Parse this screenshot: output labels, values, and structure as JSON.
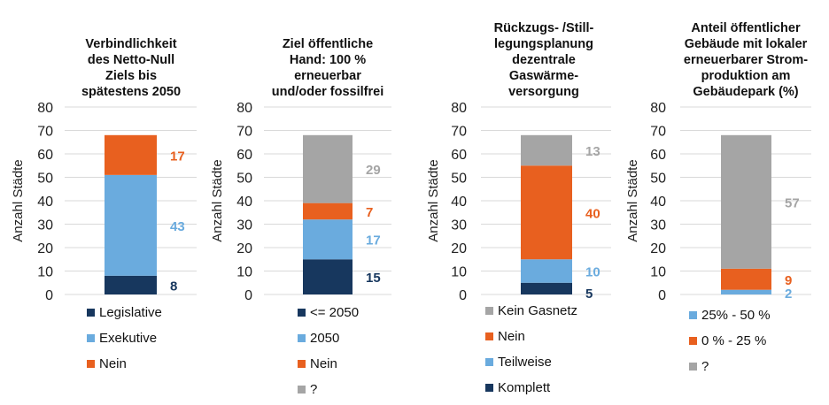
{
  "colors": {
    "dark_blue": "#17375e",
    "light_blue": "#6aabde",
    "orange": "#e8601f",
    "gray": "#a5a5a5",
    "grid": "#d9d9d9"
  },
  "chart_data": [
    {
      "type": "bar",
      "stacked": true,
      "title_lines": [
        "Verbindlichkeit",
        "des Netto-Null",
        "Ziels bis",
        "spätestens 2050"
      ],
      "ylabel": "Anzahl Städte",
      "ylim": [
        0,
        80
      ],
      "yticks": [
        0,
        10,
        20,
        30,
        40,
        50,
        60,
        70,
        80
      ],
      "grid": true,
      "series": [
        {
          "name": "Legislative",
          "value": 8,
          "color": "#17375e"
        },
        {
          "name": "Exekutive",
          "value": 43,
          "color": "#6aabde"
        },
        {
          "name": "Nein",
          "value": 17,
          "color": "#e8601f"
        }
      ],
      "legend_order": [
        "Legislative",
        "Exekutive",
        "Nein"
      ],
      "legend": "bottom"
    },
    {
      "type": "bar",
      "stacked": true,
      "title_lines": [
        "Ziel öffentliche",
        "Hand: 100 %",
        "erneuerbar",
        "und/oder fossilfrei"
      ],
      "ylabel": "Anzahl Städte",
      "ylim": [
        0,
        80
      ],
      "yticks": [
        0,
        10,
        20,
        30,
        40,
        50,
        60,
        70,
        80
      ],
      "grid": true,
      "series": [
        {
          "name": "<= 2050",
          "value": 15,
          "color": "#17375e"
        },
        {
          "name": "2050",
          "value": 17,
          "color": "#6aabde"
        },
        {
          "name": "Nein",
          "value": 7,
          "color": "#e8601f"
        },
        {
          "name": "?",
          "value": 29,
          "color": "#a5a5a5"
        }
      ],
      "legend_order": [
        "<= 2050",
        "2050",
        "Nein",
        "?"
      ],
      "legend": "bottom"
    },
    {
      "type": "bar",
      "stacked": true,
      "title_lines": [
        "Rückzugs- /Still-",
        "legungsplanung",
        "dezentrale",
        "Gaswärme-",
        "versorgung"
      ],
      "ylabel": "Anzahl Städte",
      "ylim": [
        0,
        80
      ],
      "yticks": [
        0,
        10,
        20,
        30,
        40,
        50,
        60,
        70,
        80
      ],
      "grid": true,
      "series": [
        {
          "name": "Komplett",
          "value": 5,
          "color": "#17375e"
        },
        {
          "name": "Teilweise",
          "value": 10,
          "color": "#6aabde"
        },
        {
          "name": "Nein",
          "value": 40,
          "color": "#e8601f"
        },
        {
          "name": "Kein Gasnetz",
          "value": 13,
          "color": "#a5a5a5"
        }
      ],
      "legend_order": [
        "Kein Gasnetz",
        "Nein",
        "Teilweise",
        "Komplett"
      ],
      "legend": "bottom"
    },
    {
      "type": "bar",
      "stacked": true,
      "title_lines": [
        "Anteil öffentlicher",
        "Gebäude mit lokaler",
        "erneuerbarer Strom-",
        "produktion am",
        "Gebäudepark (%)"
      ],
      "ylabel": "Anzahl Städte",
      "ylim": [
        0,
        80
      ],
      "yticks": [
        0,
        10,
        20,
        30,
        40,
        50,
        60,
        70,
        80
      ],
      "grid": true,
      "series": [
        {
          "name": "25% - 50 %",
          "value": 2,
          "color": "#6aabde"
        },
        {
          "name": "0 % - 25 %",
          "value": 9,
          "color": "#e8601f"
        },
        {
          "name": "?",
          "value": 57,
          "color": "#a5a5a5"
        }
      ],
      "legend_order": [
        "25% - 50 %",
        "0 % - 25 %",
        "?"
      ],
      "legend": "bottom"
    }
  ]
}
